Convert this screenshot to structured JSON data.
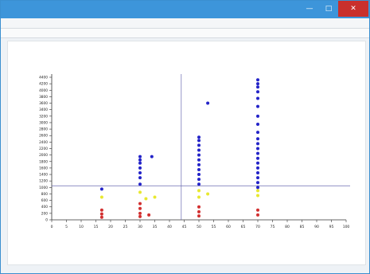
{
  "window": {
    "title": "",
    "colors": {
      "titlebar": "#3d95da",
      "close": "#c9302c"
    }
  },
  "menubar": {
    "items": [
      "",
      "",
      ""
    ]
  },
  "infobar": {
    "path": "",
    "legend": ""
  },
  "chart_data": {
    "type": "scatter",
    "title": "",
    "caption": "",
    "xlabel": "",
    "ylabel": "",
    "xlim": [
      0,
      100
    ],
    "ylim": [
      0,
      4400
    ],
    "xticks": [
      0,
      5,
      10,
      15,
      20,
      25,
      30,
      35,
      40,
      45,
      50,
      55,
      60,
      65,
      70,
      75,
      80,
      85,
      90,
      95,
      100
    ],
    "yticks": [
      0,
      200,
      400,
      600,
      800,
      1000,
      1200,
      1400,
      1600,
      1800,
      2000,
      2200,
      2400,
      2600,
      2800,
      3000,
      3200,
      3400,
      3600,
      3800,
      4000,
      4200,
      4400
    ],
    "grid": false,
    "reference_lines": {
      "x": 44,
      "y": 1050
    },
    "series": [
      {
        "color": "#2323c8",
        "points": [
          [
            17,
            950
          ],
          [
            30,
            1100
          ],
          [
            30,
            1300
          ],
          [
            30,
            1450
          ],
          [
            30,
            1600
          ],
          [
            30,
            1750
          ],
          [
            30,
            1850
          ],
          [
            30,
            1950
          ],
          [
            34,
            1950
          ],
          [
            50,
            1100
          ],
          [
            50,
            1250
          ],
          [
            50,
            1400
          ],
          [
            50,
            1550
          ],
          [
            50,
            1700
          ],
          [
            50,
            1850
          ],
          [
            50,
            2000
          ],
          [
            50,
            2150
          ],
          [
            50,
            2300
          ],
          [
            50,
            2450
          ],
          [
            50,
            2550
          ],
          [
            53,
            3600
          ],
          [
            70,
            1000
          ],
          [
            70,
            1150
          ],
          [
            70,
            1300
          ],
          [
            70,
            1450
          ],
          [
            70,
            1600
          ],
          [
            70,
            1750
          ],
          [
            70,
            1900
          ],
          [
            70,
            2050
          ],
          [
            70,
            2200
          ],
          [
            70,
            2350
          ],
          [
            70,
            2500
          ],
          [
            70,
            2700
          ],
          [
            70,
            2950
          ],
          [
            70,
            3200
          ],
          [
            70,
            3500
          ],
          [
            70,
            3750
          ],
          [
            70,
            3950
          ],
          [
            70,
            4100
          ],
          [
            70,
            4200
          ],
          [
            70,
            4320
          ]
        ]
      },
      {
        "color": "#e8e830",
        "points": [
          [
            17,
            700
          ],
          [
            30,
            850
          ],
          [
            32,
            650
          ],
          [
            35,
            700
          ],
          [
            50,
            700
          ],
          [
            50,
            900
          ],
          [
            53,
            800
          ],
          [
            70,
            750
          ],
          [
            70,
            900
          ]
        ]
      },
      {
        "color": "#d23030",
        "points": [
          [
            17,
            80
          ],
          [
            17,
            180
          ],
          [
            17,
            300
          ],
          [
            30,
            100
          ],
          [
            30,
            200
          ],
          [
            30,
            350
          ],
          [
            30,
            500
          ],
          [
            33,
            150
          ],
          [
            50,
            120
          ],
          [
            50,
            250
          ],
          [
            50,
            400
          ],
          [
            70,
            150
          ],
          [
            70,
            300
          ]
        ]
      }
    ]
  }
}
